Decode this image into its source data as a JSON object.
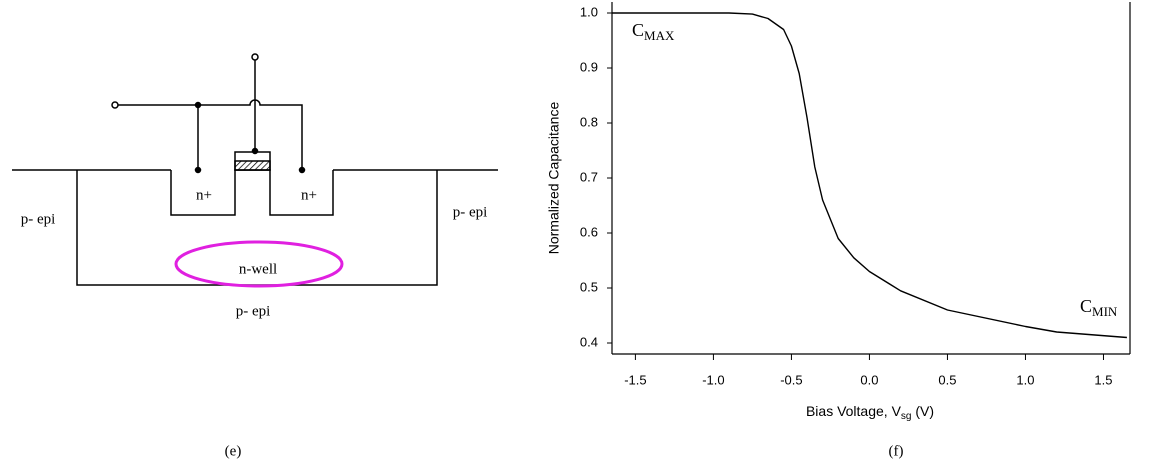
{
  "diagram": {
    "labels": {
      "p_epi_left": "p- epi",
      "p_epi_right": "p- epi",
      "p_epi_bottom": "p- epi",
      "n_plus_left": "n+",
      "n_plus_right": "n+",
      "n_well": "n-well"
    },
    "caption": "(e)"
  },
  "chart_data": {
    "type": "line",
    "ylabel": "Normalized Capacitance",
    "xlabel": {
      "main": "Bias Voltage, V",
      "sub": "sg",
      "tail": " (V)"
    },
    "caption": "(f)",
    "annotations": [
      {
        "text": "C",
        "sub": "MAX"
      },
      {
        "text": "C",
        "sub": "MIN"
      }
    ],
    "x": [
      -1.65,
      -0.9,
      -0.75,
      -0.65,
      -0.55,
      -0.5,
      -0.45,
      -0.4,
      -0.35,
      -0.3,
      -0.2,
      -0.1,
      0,
      0.2,
      0.5,
      1.0,
      1.2,
      1.65
    ],
    "values": [
      1.0,
      1.0,
      0.998,
      0.99,
      0.97,
      0.94,
      0.89,
      0.81,
      0.72,
      0.66,
      0.59,
      0.555,
      0.53,
      0.495,
      0.46,
      0.43,
      0.42,
      0.41
    ],
    "color": "#000000",
    "xlim": [
      -1.65,
      1.67
    ],
    "ylim": [
      0.38,
      1.02
    ],
    "xticks": [
      -1.5,
      {
        "value": -1,
        "label": "-1.0"
      },
      -0.5,
      {
        "value": 0,
        "label": "0.0"
      },
      0.5,
      {
        "value": 1,
        "label": "1.0"
      },
      1.5
    ],
    "yticks": [
      0.4,
      0.5,
      0.6,
      0.7,
      0.8,
      0.9,
      {
        "value": 1,
        "label": "1.0"
      }
    ]
  }
}
